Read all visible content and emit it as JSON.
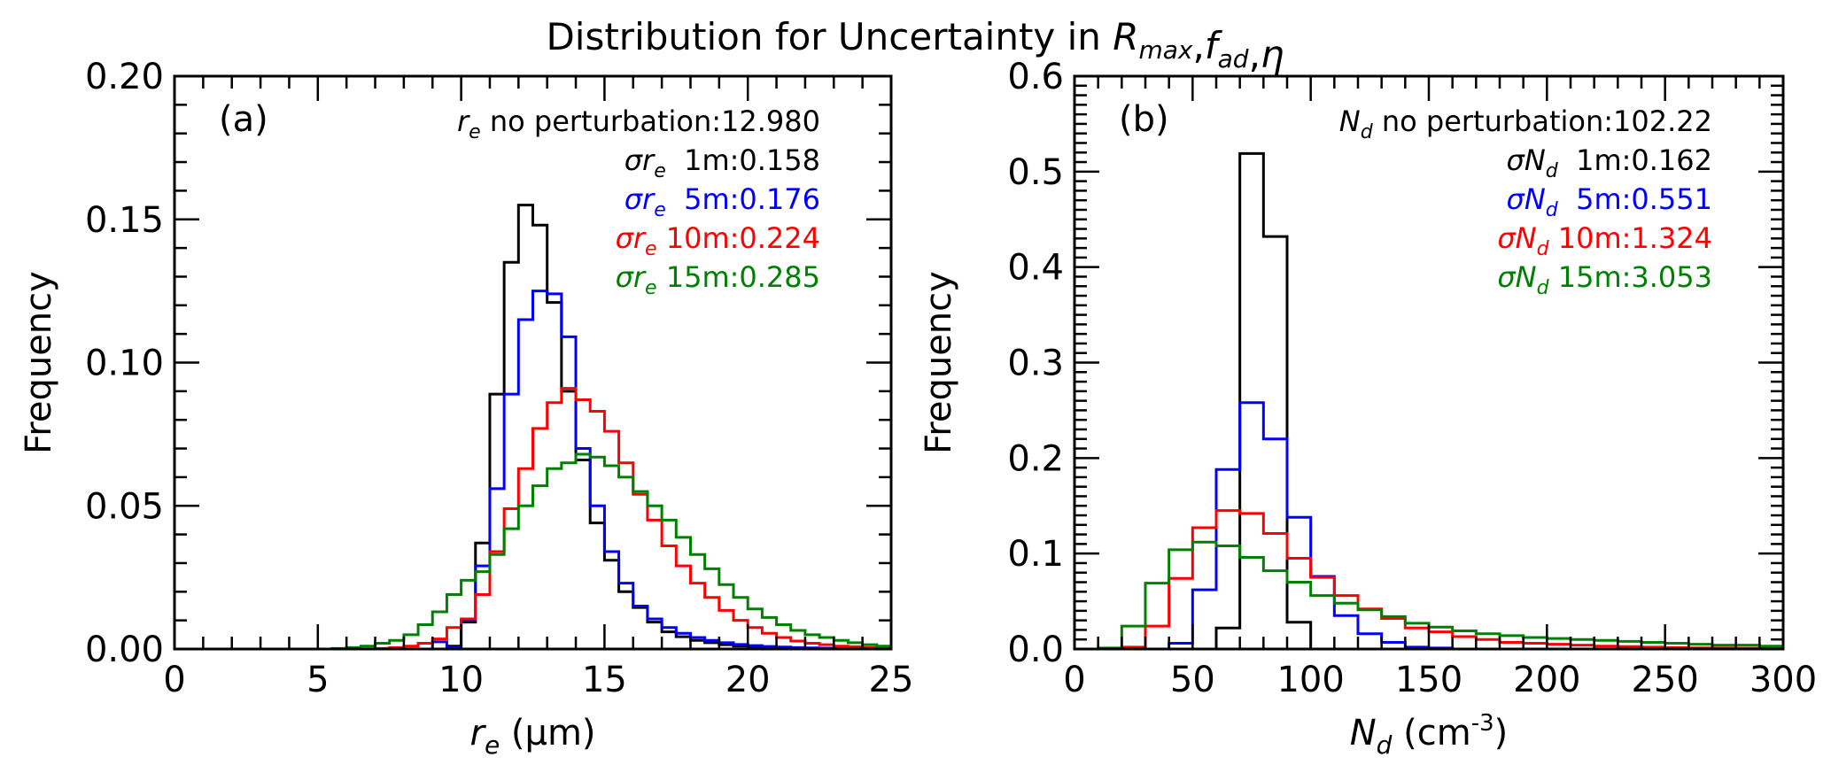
{
  "title": {
    "prefix": "Distribution for Uncertainty in ",
    "vars": [
      {
        "sym": "R",
        "sub": "max"
      },
      {
        "sym": "f",
        "sub": "ad"
      },
      {
        "sym": "η",
        "sub": ""
      }
    ]
  },
  "colors": {
    "1m": "#000000",
    "5m": "#0000ff",
    "10m": "#ff0000",
    "15m": "#008000"
  },
  "chart_data": [
    {
      "type": "histogram",
      "panel": "(a)",
      "xlabel": {
        "sym": "r",
        "sub": "e",
        "unit": " (μm)"
      },
      "ylabel": "Frequency",
      "xlim": [
        0,
        25
      ],
      "ylim": [
        0,
        0.2
      ],
      "x_major_ticks": [
        0,
        5,
        10,
        15,
        20,
        25
      ],
      "x_tick_labels": [
        "0",
        "5",
        "10",
        "15",
        "20",
        "25"
      ],
      "x_minor_step": 1,
      "y_major_ticks": [
        0,
        0.05,
        0.1,
        0.15,
        0.2
      ],
      "y_tick_labels": [
        "0.00",
        "0.05",
        "0.10",
        "0.15",
        "0.20"
      ],
      "y_minor_step": 0.01,
      "legend_placement": "top-right",
      "legend_header": {
        "sym": "r",
        "sub": "e",
        "text": " no perturbation:12.980"
      },
      "bin_start": 4.5,
      "bin_width": 0.5,
      "series": [
        {
          "name": "1m",
          "legend_sym": "σr",
          "legend_sub": "e",
          "legend_text": "  1m:0.158",
          "values": [
            0,
            0,
            0,
            0,
            0,
            0,
            0,
            0,
            0,
            0,
            0.001,
            0.0094,
            0.037,
            0.089,
            0.135,
            0.155,
            0.148,
            0.121,
            0.09,
            0.066,
            0.044,
            0.031,
            0.02,
            0.0145,
            0.0094,
            0.006,
            0.0043,
            0.003,
            0.0022,
            0.0015,
            0.001,
            0.0008,
            0.0005,
            0.0004,
            0.0003,
            0.0002,
            0.0002,
            0.0001,
            0.0001,
            0.0001,
            0
          ]
        },
        {
          "name": "5m",
          "legend_sym": "σr",
          "legend_sub": "e",
          "legend_text": "  5m:0.176",
          "values": [
            0,
            0,
            0,
            0,
            0,
            0,
            0,
            0,
            0,
            0.0025,
            0.0005,
            0.01,
            0.029,
            0.056,
            0.089,
            0.115,
            0.125,
            0.124,
            0.109,
            0.07,
            0.05,
            0.034,
            0.023,
            0.015,
            0.0105,
            0.0075,
            0.0055,
            0.004,
            0.003,
            0.0022,
            0.0016,
            0.0012,
            0.0009,
            0.0007,
            0.0005,
            0.0004,
            0.0003,
            0.0002,
            0.0002,
            0.0001,
            0
          ]
        },
        {
          "name": "10m",
          "legend_sym": "σr",
          "legend_sub": "e",
          "legend_text": " 10m:0.224",
          "values": [
            0,
            0,
            0,
            0,
            0,
            0.0002,
            0.0005,
            0.001,
            0.002,
            0.0035,
            0.0075,
            0.0105,
            0.019,
            0.034,
            0.049,
            0.063,
            0.077,
            0.086,
            0.091,
            0.087,
            0.083,
            0.076,
            0.065,
            0.054,
            0.045,
            0.036,
            0.029,
            0.023,
            0.018,
            0.0135,
            0.01,
            0.0075,
            0.0055,
            0.004,
            0.0028,
            0.002,
            0.0015,
            0.001,
            0.0008,
            0.0005,
            0.0003
          ]
        },
        {
          "name": "15m",
          "legend_sym": "σr",
          "legend_sub": "e",
          "legend_text": " 15m:0.285",
          "values": [
            0,
            0,
            0.0002,
            0.0005,
            0.001,
            0.002,
            0.003,
            0.005,
            0.0085,
            0.013,
            0.019,
            0.024,
            0.027,
            0.033,
            0.042,
            0.05,
            0.057,
            0.063,
            0.065,
            0.068,
            0.067,
            0.064,
            0.06,
            0.055,
            0.05,
            0.045,
            0.039,
            0.033,
            0.028,
            0.0225,
            0.018,
            0.014,
            0.011,
            0.0085,
            0.0065,
            0.005,
            0.004,
            0.003,
            0.0022,
            0.0015,
            0.001
          ]
        }
      ]
    },
    {
      "type": "histogram",
      "panel": "(b)",
      "xlabel": {
        "sym": "N",
        "sub": "d",
        "unit": " (cm",
        "sup": "-3",
        "close": ")"
      },
      "ylabel": "Frequency",
      "xlim": [
        0,
        300
      ],
      "ylim": [
        0,
        0.6
      ],
      "x_major_ticks": [
        0,
        50,
        100,
        150,
        200,
        250,
        300
      ],
      "x_tick_labels": [
        "0",
        "50",
        "100",
        "150",
        "200",
        "250",
        "300"
      ],
      "x_minor_step": 10,
      "y_major_ticks": [
        0,
        0.1,
        0.2,
        0.3,
        0.4,
        0.5,
        0.6
      ],
      "y_tick_labels": [
        "0.0",
        "0.1",
        "0.2",
        "0.3",
        "0.4",
        "0.5",
        "0.6"
      ],
      "y_minor_step": 0.01,
      "legend_placement": "top-right",
      "legend_header": {
        "sym": "N",
        "sub": "d",
        "text": " no perturbation:102.22"
      },
      "bin_start": 10,
      "bin_width": 10,
      "series": [
        {
          "name": "1m",
          "legend_sym": "σN",
          "legend_sub": "d",
          "legend_text": "  1m:0.162",
          "values": [
            0,
            0,
            0,
            0,
            0,
            0.022,
            0.519,
            0.432,
            0.028,
            0,
            0,
            0,
            0,
            0,
            0,
            0,
            0,
            0,
            0,
            0,
            0,
            0,
            0,
            0,
            0,
            0,
            0,
            0,
            0
          ]
        },
        {
          "name": "5m",
          "legend_sym": "σN",
          "legend_sub": "d",
          "legend_text": "  5m:0.551",
          "values": [
            0,
            0,
            0,
            0.006,
            0.062,
            0.188,
            0.258,
            0.22,
            0.138,
            0.076,
            0.035,
            0.016,
            0.007,
            0.002,
            0.001,
            0,
            0,
            0,
            0,
            0,
            0,
            0,
            0,
            0,
            0,
            0,
            0,
            0,
            0
          ]
        },
        {
          "name": "10m",
          "legend_sym": "σN",
          "legend_sub": "d",
          "legend_text": " 10m:1.324",
          "values": [
            0,
            0.002,
            0.024,
            0.074,
            0.127,
            0.145,
            0.142,
            0.121,
            0.095,
            0.075,
            0.056,
            0.042,
            0.032,
            0.022,
            0.018,
            0.013,
            0.01,
            0.007,
            0.006,
            0.005,
            0.004,
            0.003,
            0.0025,
            0.002,
            0.0015,
            0.0012,
            0.001,
            0.0008,
            0.0006
          ]
        },
        {
          "name": "15m",
          "legend_sym": "σN",
          "legend_sub": "d",
          "legend_text": " 15m:3.053",
          "values": [
            0.001,
            0.024,
            0.069,
            0.104,
            0.112,
            0.108,
            0.096,
            0.082,
            0.07,
            0.056,
            0.048,
            0.041,
            0.034,
            0.027,
            0.023,
            0.019,
            0.016,
            0.014,
            0.012,
            0.011,
            0.01,
            0.009,
            0.008,
            0.007,
            0.006,
            0.005,
            0.004,
            0.004,
            0.003
          ]
        }
      ]
    }
  ]
}
